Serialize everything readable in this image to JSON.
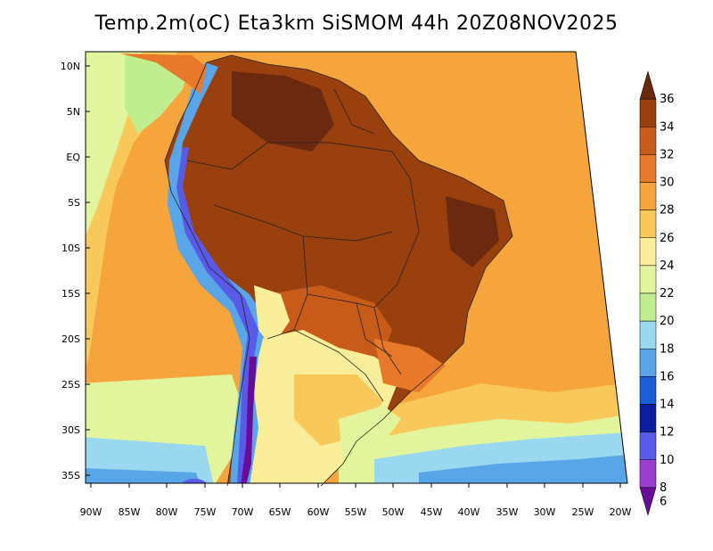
{
  "title": "Temp.2m(oC) Eta3km SiSMOM 44h 20Z08NOV2025",
  "lat_labels": [
    "10N",
    "5N",
    "EQ",
    "5S",
    "10S",
    "15S",
    "20S",
    "25S",
    "30S",
    "35S"
  ],
  "lon_labels": [
    "90W",
    "85W",
    "80W",
    "75W",
    "70W",
    "65W",
    "60W",
    "55W",
    "50W",
    "45W",
    "40W",
    "35W",
    "30W",
    "25W",
    "20W"
  ],
  "colorbar": {
    "labels": [
      "36",
      "34",
      "32",
      "30",
      "28",
      "26",
      "24",
      "22",
      "20",
      "18",
      "16",
      "14",
      "12",
      "10",
      "8",
      "6"
    ],
    "colors": [
      "#6b2a10",
      "#99400e",
      "#c85a1a",
      "#e8782a",
      "#f5a53c",
      "#f8c95a",
      "#fbee9a",
      "#e2f59c",
      "#c0ee8e",
      "#9ad8f0",
      "#58a6e8",
      "#1a5fd8",
      "#0a1e9e",
      "#5a5ae8",
      "#9a3ed0",
      "#6a0c9a"
    ]
  },
  "colors": {
    "ocean_warm": "#f5a53c",
    "ocean_mid": "#f8c95a",
    "ocean_cool": "#e2f59c",
    "land_hot": "#99400e",
    "andes_cold": "#5a5ae8"
  }
}
